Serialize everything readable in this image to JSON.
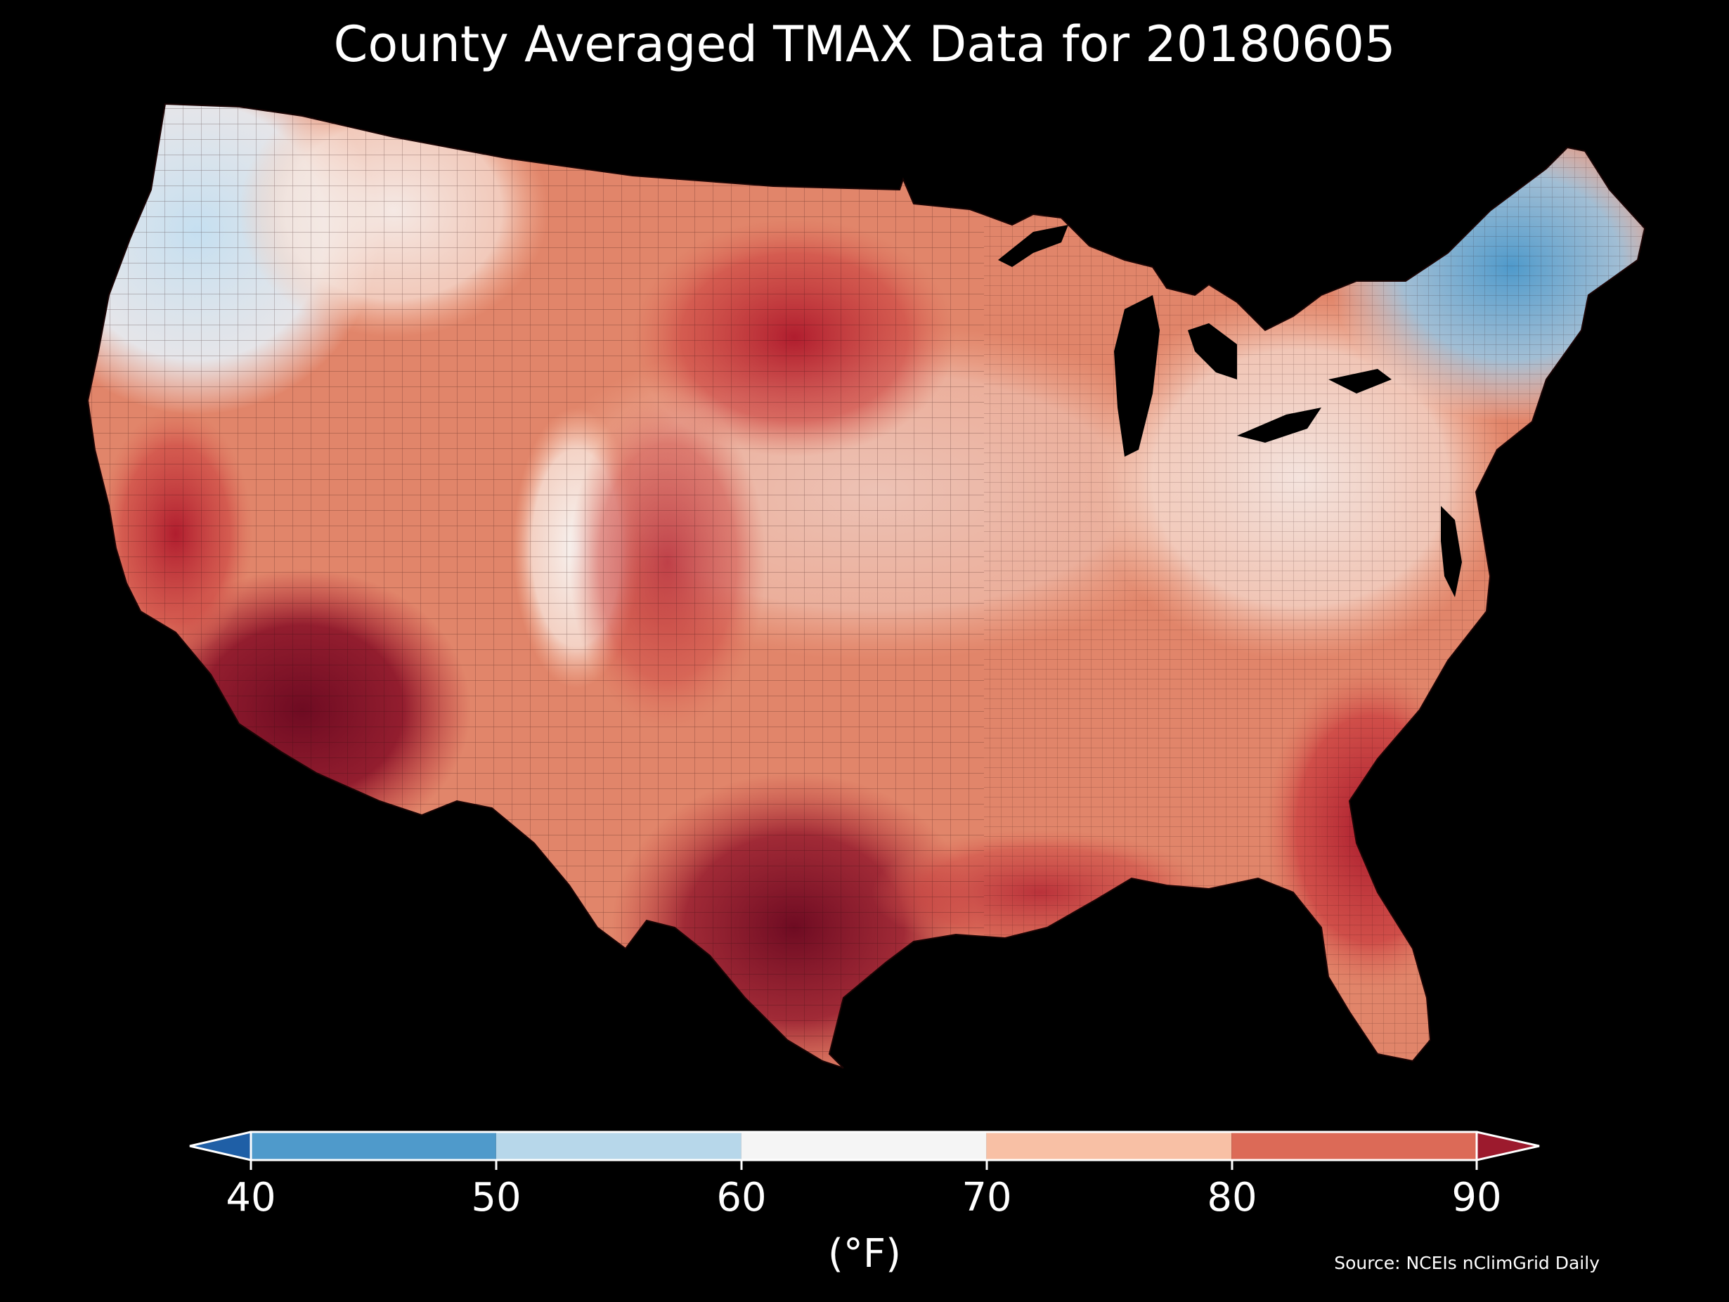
{
  "title": "County Averaged TMAX Data for 20180605",
  "colorbar": {
    "ticks": [
      "40",
      "50",
      "60",
      "70",
      "80",
      "90"
    ],
    "units": "(°F)",
    "bins": [
      {
        "from": null,
        "to": 40,
        "color": "#1f5fa6"
      },
      {
        "from": 40,
        "to": 50,
        "color": "#4f9acb"
      },
      {
        "from": 50,
        "to": 60,
        "color": "#b7d7ea"
      },
      {
        "from": 60,
        "to": 70,
        "color": "#f5f5f5"
      },
      {
        "from": 70,
        "to": 80,
        "color": "#f8c0a5"
      },
      {
        "from": 80,
        "to": 90,
        "color": "#dc6a57"
      },
      {
        "from": 90,
        "to": null,
        "color": "#9c1a2d"
      }
    ],
    "extend": "both"
  },
  "source": "Source: NCEIs nClimGrid Daily",
  "map": {
    "variable": "TMAX",
    "date": "20180605",
    "region": "Contiguous United States",
    "colormap": "diverging blue-white-red",
    "background": "#000000",
    "regional_values_F": [
      {
        "region": "Northwest (WA/OR coast)",
        "value": 58
      },
      {
        "region": "Northern Rockies",
        "value": 66
      },
      {
        "region": "Northern Plains (ND/SD)",
        "value": 84
      },
      {
        "region": "Upper Midwest",
        "value": 74
      },
      {
        "region": "Great Lakes",
        "value": 70
      },
      {
        "region": "New England",
        "value": 50
      },
      {
        "region": "Mid-Atlantic",
        "value": 72
      },
      {
        "region": "Appalachians",
        "value": 66
      },
      {
        "region": "Southeast",
        "value": 84
      },
      {
        "region": "Florida",
        "value": 86
      },
      {
        "region": "Gulf Coast",
        "value": 86
      },
      {
        "region": "Texas",
        "value": 92
      },
      {
        "region": "Southwest desert (AZ)",
        "value": 96
      },
      {
        "region": "California Central Valley",
        "value": 88
      },
      {
        "region": "Great Basin",
        "value": 82
      },
      {
        "region": "Colorado Rockies",
        "value": 64
      }
    ]
  }
}
